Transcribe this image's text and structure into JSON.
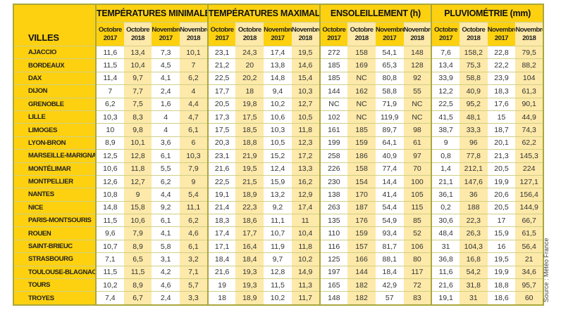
{
  "header": {
    "villes": "VILLES",
    "groups": [
      "TEMPÉRATURES MINIMALES (°C)",
      "TEMPÉRATURES MAXIMALES (°C)",
      "ENSOLEILLEMENT (h)",
      "PLUVIOMÉTRIE (mm)"
    ],
    "periods": [
      [
        "Octobre",
        "2017"
      ],
      [
        "Octobre",
        "2018"
      ],
      [
        "Novembre",
        "2017"
      ],
      [
        "Novembre",
        "2018"
      ]
    ]
  },
  "colors": {
    "yellow": "#fdd10f",
    "pale_yellow": "#fde9a9",
    "border": "#a9a83c"
  },
  "rows": [
    {
      "city": "AJACCIO",
      "values": [
        "11,6",
        "13,4",
        "7,3",
        "10,1",
        "23,1",
        "24,3",
        "17,4",
        "19,5",
        "272",
        "158",
        "54,1",
        "148",
        "7,6",
        "158,2",
        "22,8",
        "79,5"
      ]
    },
    {
      "city": "BORDEAUX",
      "values": [
        "11,5",
        "10,4",
        "4,5",
        "7",
        "21,2",
        "20",
        "13,8",
        "14,6",
        "185",
        "169",
        "65,3",
        "128",
        "13,4",
        "75,3",
        "22,2",
        "88,2"
      ]
    },
    {
      "city": "DAX",
      "values": [
        "11,4",
        "9,7",
        "4,1",
        "6,2",
        "22,5",
        "20,2",
        "14,8",
        "15,4",
        "185",
        "NC",
        "80,8",
        "92",
        "33,9",
        "58,8",
        "23,9",
        "104"
      ]
    },
    {
      "city": "DIJON",
      "values": [
        "7",
        "7,7",
        "2,4",
        "4",
        "17,7",
        "18",
        "9,4",
        "10,3",
        "144",
        "162",
        "58,8",
        "55",
        "12,2",
        "40,9",
        "18,3",
        "61,3"
      ]
    },
    {
      "city": "GRENOBLE",
      "values": [
        "6,2",
        "7,5",
        "1,6",
        "4,4",
        "20,5",
        "19,8",
        "10,2",
        "12,7",
        "NC",
        "NC",
        "71,9",
        "NC",
        "22,5",
        "95,2",
        "17,6",
        "90,1"
      ]
    },
    {
      "city": "LILLE",
      "values": [
        "10,3",
        "8,3",
        "4",
        "4,7",
        "17,3",
        "17,5",
        "10,6",
        "10,5",
        "102",
        "NC",
        "119,9",
        "NC",
        "41,5",
        "48,1",
        "15",
        "44,9"
      ]
    },
    {
      "city": "LIMOGES",
      "values": [
        "10",
        "9,8",
        "4",
        "6,1",
        "17,5",
        "18,5",
        "10,3",
        "11,8",
        "161",
        "185",
        "89,7",
        "98",
        "38,7",
        "33,3",
        "18,7",
        "74,3"
      ]
    },
    {
      "city": "LYON-BRON",
      "values": [
        "8,9",
        "10,1",
        "3,6",
        "6",
        "20,3",
        "18,8",
        "10,5",
        "12,3",
        "199",
        "159",
        "64,1",
        "61",
        "9",
        "96",
        "20,1",
        "62,2"
      ]
    },
    {
      "city": "MARSEILLE-MARIGNANE",
      "values": [
        "12,5",
        "12,8",
        "6,1",
        "10,3",
        "23,1",
        "21,9",
        "15,2",
        "17,2",
        "258",
        "186",
        "40,9",
        "97",
        "0,8",
        "77,8",
        "21,3",
        "145,3"
      ]
    },
    {
      "city": "MONTÉLIMAR",
      "values": [
        "10,6",
        "11,8",
        "5,5",
        "7,9",
        "21,6",
        "19,5",
        "12,4",
        "13,3",
        "226",
        "158",
        "77,4",
        "70",
        "1,4",
        "212,1",
        "20,5",
        "224"
      ]
    },
    {
      "city": "MONTPELLIER",
      "values": [
        "12,6",
        "12,7",
        "6,2",
        "9",
        "22,5",
        "21,5",
        "15,9",
        "16,2",
        "230",
        "154",
        "14,4",
        "100",
        "21,1",
        "147,6",
        "19,9",
        "127,1"
      ]
    },
    {
      "city": "NANTES",
      "values": [
        "10,8",
        "9",
        "4,4",
        "5,4",
        "19,1",
        "18,9",
        "13,2",
        "12,9",
        "138",
        "170",
        "41,4",
        "105",
        "36,1",
        "36",
        "20,6",
        "156,4"
      ]
    },
    {
      "city": "NICE",
      "values": [
        "14,8",
        "15,8",
        "9,2",
        "11,1",
        "21,4",
        "22,3",
        "9,2",
        "17,4",
        "263",
        "187",
        "54,4",
        "115",
        "0,2",
        "188",
        "20,5",
        "144,9"
      ]
    },
    {
      "city": "PARIS-MONTSOURIS",
      "values": [
        "11,5",
        "10,6",
        "6,1",
        "6,2",
        "18,3",
        "18,6",
        "11,1",
        "11",
        "135",
        "176",
        "54,9",
        "85",
        "30,6",
        "22,3",
        "17",
        "66,7"
      ]
    },
    {
      "city": "ROUEN",
      "values": [
        "9,6",
        "7,9",
        "4,1",
        "4,6",
        "17,4",
        "17,7",
        "10,7",
        "10,4",
        "110",
        "159",
        "93,4",
        "52",
        "48,4",
        "26,3",
        "15,9",
        "61,5"
      ]
    },
    {
      "city": "SAINT-BRIEUC",
      "values": [
        "10,7",
        "8,9",
        "5,8",
        "6,1",
        "17,1",
        "16,4",
        "11,9",
        "11,8",
        "116",
        "157",
        "81,7",
        "106",
        "31",
        "104,3",
        "16",
        "56,4"
      ]
    },
    {
      "city": "STRASBOURG",
      "values": [
        "7,1",
        "6,5",
        "3,1",
        "3,2",
        "18,4",
        "18,4",
        "9,7",
        "10,2",
        "125",
        "166",
        "88,1",
        "80",
        "36,8",
        "16,8",
        "19,5",
        "21"
      ]
    },
    {
      "city": "TOULOUSE-BLAGNAC",
      "values": [
        "11,5",
        "11,5",
        "4,2",
        "7,1",
        "21,6",
        "19,3",
        "12,8",
        "14,9",
        "197",
        "144",
        "18,4",
        "117",
        "11,6",
        "54,2",
        "19,9",
        "34,6"
      ]
    },
    {
      "city": "TOURS",
      "values": [
        "10,2",
        "8,9",
        "4,6",
        "5,7",
        "19",
        "19,3",
        "11,5",
        "11,3",
        "165",
        "182",
        "42,9",
        "72",
        "21,6",
        "31,8",
        "18,8",
        "95,7"
      ]
    },
    {
      "city": "TROYES",
      "values": [
        "7,4",
        "6,7",
        "2,4",
        "3,3",
        "18",
        "18,9",
        "10,2",
        "11,7",
        "148",
        "182",
        "57",
        "83",
        "19,1",
        "31",
        "18,6",
        "60"
      ]
    }
  ],
  "source": "Source : Météo France"
}
